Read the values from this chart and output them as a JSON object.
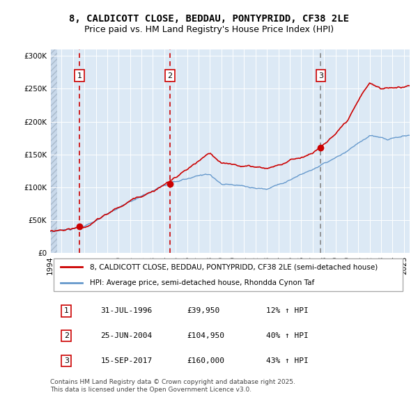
{
  "title_line1": "8, CALDICOTT CLOSE, BEDDAU, PONTYPRIDD, CF38 2LE",
  "title_line2": "Price paid vs. HM Land Registry's House Price Index (HPI)",
  "bg_color": "#dce9f5",
  "red_line_color": "#cc0000",
  "blue_line_color": "#6699cc",
  "sale_marker_color": "#cc0000",
  "vline_red_color": "#cc0000",
  "vline_grey_color": "#888888",
  "grid_color": "#ffffff",
  "ylim": [
    0,
    310000
  ],
  "yticks": [
    0,
    50000,
    100000,
    150000,
    200000,
    250000,
    300000
  ],
  "ytick_labels": [
    "£0",
    "£50K",
    "£100K",
    "£150K",
    "£200K",
    "£250K",
    "£300K"
  ],
  "xstart_year": 1994,
  "xend_year": 2026,
  "sale1_x": 1996.583,
  "sale1_price": 39950,
  "sale1_label": "1",
  "sale2_x": 2004.5,
  "sale2_price": 104950,
  "sale2_label": "2",
  "sale3_x": 2017.708,
  "sale3_price": 160000,
  "sale3_label": "3",
  "legend_red_label": "8, CALDICOTT CLOSE, BEDDAU, PONTYPRIDD, CF38 2LE (semi-detached house)",
  "legend_blue_label": "HPI: Average price, semi-detached house, Rhondda Cynon Taf",
  "table_data": [
    [
      "1",
      "31-JUL-1996",
      "£39,950",
      "12% ↑ HPI"
    ],
    [
      "2",
      "25-JUN-2004",
      "£104,950",
      "40% ↑ HPI"
    ],
    [
      "3",
      "15-SEP-2017",
      "£160,000",
      "43% ↑ HPI"
    ]
  ],
  "footer_text": "Contains HM Land Registry data © Crown copyright and database right 2025.\nThis data is licensed under the Open Government Licence v3.0.",
  "title_fontsize": 10,
  "tick_fontsize": 7.5,
  "legend_fontsize": 7.5,
  "footer_fontsize": 6.5
}
